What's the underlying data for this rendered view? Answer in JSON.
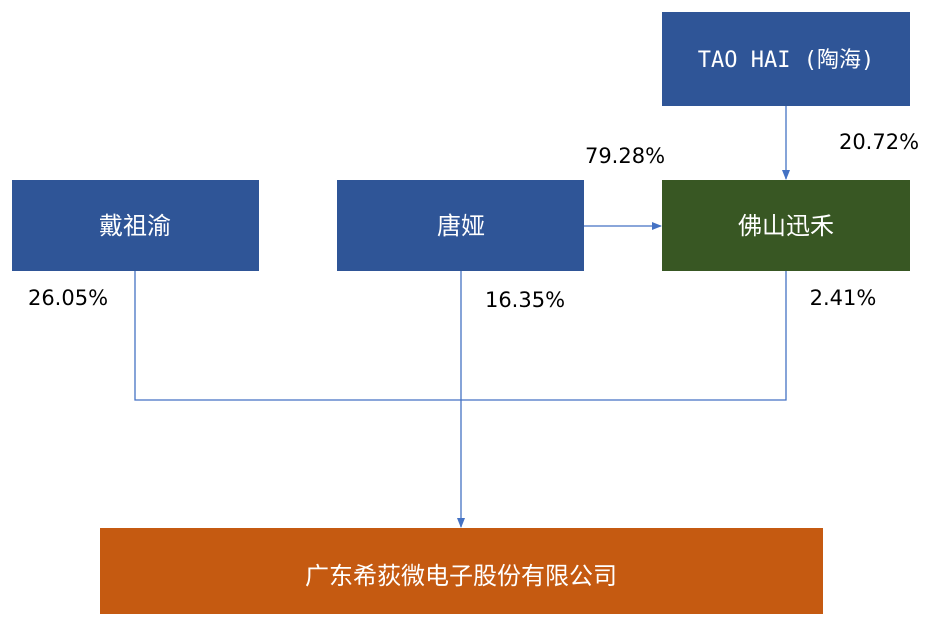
{
  "nodes": [
    {
      "label": "TAO HAI (陶海)"
    },
    {
      "label": "戴祖渝"
    },
    {
      "label": "唐娅"
    },
    {
      "label": "佛山迅禾"
    },
    {
      "label": "广东希荻微电子股份有限公司"
    }
  ],
  "edges": [
    {
      "label": "20.72%"
    },
    {
      "label": "79.28%"
    },
    {
      "label": "26.05%"
    },
    {
      "label": "16.35%"
    },
    {
      "label": "2.41%"
    }
  ]
}
